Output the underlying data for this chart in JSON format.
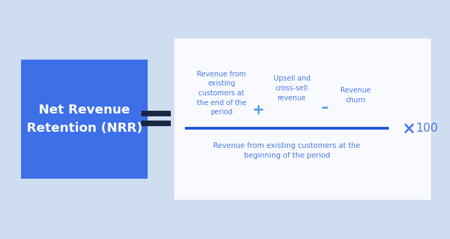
{
  "bg_color": "#cfddf0",
  "blue_box_color": "#3d6fe8",
  "white_box_color": "#f8faff",
  "dark_bar_color": "#1a2744",
  "line_color": "#2255dd",
  "formula_color": "#4a7ae8",
  "operator_color": "#4a9de8",
  "text_color": "#ffffff",
  "nrr_label": "Net Revenue\nRetention (NRR)",
  "numerator_term1": "Revenue from\nexisting\ncustomers at\nthe end of the\nperiod",
  "numerator_term2": "Upsell and\ncross-sell\nrevenue",
  "numerator_term3": "Revenue\nchurn",
  "denominator": "Revenue from existing customers at the\nbeginning of the period",
  "plus_sign": "+",
  "minus_sign": "–",
  "times_sign": "×",
  "hundred": "100",
  "fig_w": 6.4,
  "fig_h": 3.41,
  "dpi": 100
}
